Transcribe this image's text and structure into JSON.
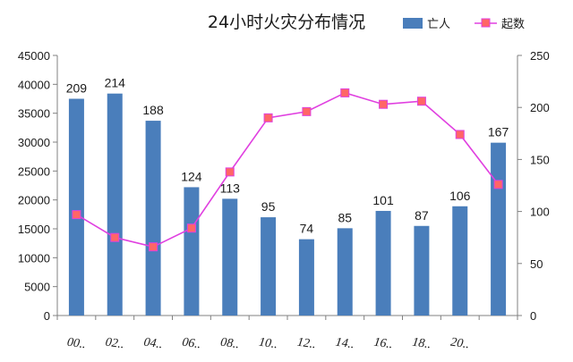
{
  "chart_data": {
    "type": "bar",
    "title": "24小时火灾分布情况",
    "categories": [
      "00..",
      "02..",
      "04..",
      "06..",
      "08..",
      "10..",
      "12..",
      "14..",
      "16..",
      "18..",
      "20..",
      ""
    ],
    "series": [
      {
        "name": "亡人",
        "type": "bar",
        "axis": "left",
        "color": "#4a7ebb",
        "values": [
          37500,
          38400,
          33700,
          22200,
          20200,
          17000,
          13200,
          15100,
          18100,
          15500,
          18900,
          29900
        ],
        "labels": [
          "209",
          "214",
          "188",
          "124",
          "113",
          "95",
          "74",
          "85",
          "101",
          "87",
          "106",
          "167"
        ]
      },
      {
        "name": "起数",
        "type": "line",
        "axis": "right",
        "color": "#e040e0",
        "marker_color": "#ff6666",
        "values": [
          97,
          75,
          66,
          84,
          138,
          190,
          196,
          214,
          203,
          206,
          174,
          126
        ]
      }
    ],
    "yleft": {
      "min": 0,
      "max": 45000,
      "ticks": [
        "0",
        "5000",
        "10000",
        "15000",
        "20000",
        "25000",
        "30000",
        "35000",
        "40000",
        "45000"
      ]
    },
    "yright": {
      "min": 0,
      "max": 250,
      "ticks": [
        "0",
        "50",
        "100",
        "150",
        "200",
        "250"
      ]
    },
    "grid": false,
    "legend_position": "top-right"
  }
}
